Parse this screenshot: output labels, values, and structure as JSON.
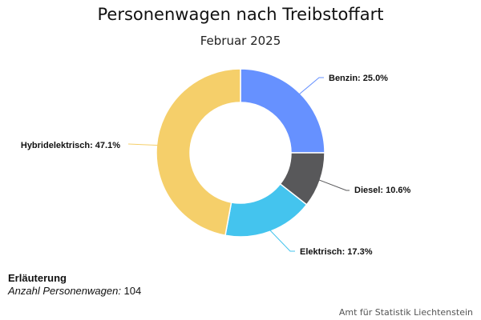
{
  "chart_data": {
    "type": "pie",
    "variant": "donut",
    "title": "Personenwagen nach Treibstoffart",
    "subtitle": "Februar 2025",
    "unit": "%",
    "series": [
      {
        "name": "Benzin",
        "value": 25.0,
        "label": "Benzin: 25.0%",
        "color": "#6691FF"
      },
      {
        "name": "Diesel",
        "value": 10.6,
        "label": "Diesel: 10.6%",
        "color": "#58585A"
      },
      {
        "name": "Elektrisch",
        "value": 17.3,
        "label": "Elektrisch: 17.3%",
        "color": "#44C4EE"
      },
      {
        "name": "Hybridelektrisch",
        "value": 47.1,
        "label": "Hybridelektrisch: 47.1%",
        "color": "#F5CF6A"
      }
    ]
  },
  "note": {
    "heading": "Erläuterung",
    "label": "Anzahl Personenwagen:",
    "value": " 104"
  },
  "credit": "Amt für Statistik Liechtenstein"
}
